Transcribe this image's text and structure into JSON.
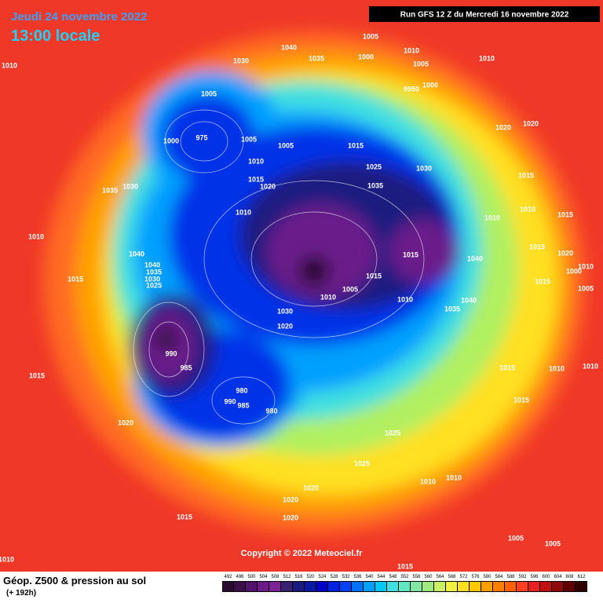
{
  "header": {
    "date": "Jeudi 24 novembre 2022",
    "time": "13:00 locale",
    "run": "Run GFS 12 Z du Mercredi 16 novembre 2022"
  },
  "copyright": "Copyright © 2022 Meteociel.fr",
  "footer": {
    "title": "Géop. Z500 & pression au sol",
    "lead": "(+ 192h)"
  },
  "scale": {
    "values": [
      492,
      496,
      500,
      504,
      508,
      512,
      516,
      520,
      524,
      528,
      532,
      536,
      540,
      544,
      548,
      552,
      556,
      560,
      564,
      568,
      572,
      576,
      580,
      584,
      588,
      592,
      596,
      600,
      604,
      608,
      612
    ],
    "colors": [
      "#2a0a30",
      "#3d0f48",
      "#54136a",
      "#6b1a8a",
      "#7d2198",
      "#3a2070",
      "#1a1a80",
      "#0a1aa0",
      "#0000c8",
      "#0020e0",
      "#0040ff",
      "#0070ff",
      "#00a0ff",
      "#00c8f0",
      "#40e0e0",
      "#60e8c0",
      "#80e8a0",
      "#a0e880",
      "#c8f060",
      "#f0f040",
      "#ffe020",
      "#ffc800",
      "#ffa000",
      "#ff8000",
      "#ff6000",
      "#ff4020",
      "#e82020",
      "#c01010",
      "#900808",
      "#600000",
      "#300000"
    ]
  },
  "isobar_labels": [
    1010,
    1005,
    1040,
    1035,
    1000,
    1010,
    1005,
    1010,
    1030,
    1005,
    9950,
    1000,
    975,
    1000,
    1005,
    1005,
    1015,
    1025,
    1030,
    1035,
    1020,
    1010,
    1015,
    1020,
    1020,
    1015,
    1035,
    1030,
    1010,
    1040,
    1040,
    1035,
    1030,
    1025,
    1015,
    1010,
    1010,
    1015,
    1040,
    1015,
    1015,
    1010,
    1005,
    1010,
    1040,
    1035,
    1030,
    1020,
    990,
    985,
    1015,
    980,
    990,
    985,
    980,
    1020,
    1025,
    1025,
    1010,
    1010,
    1020,
    1020,
    1020,
    1015,
    1005,
    1005,
    1015,
    1010,
    1010,
    1010,
    1015,
    1015,
    1015,
    1010,
    1005,
    1000,
    1010,
    1020,
    1015
  ]
}
